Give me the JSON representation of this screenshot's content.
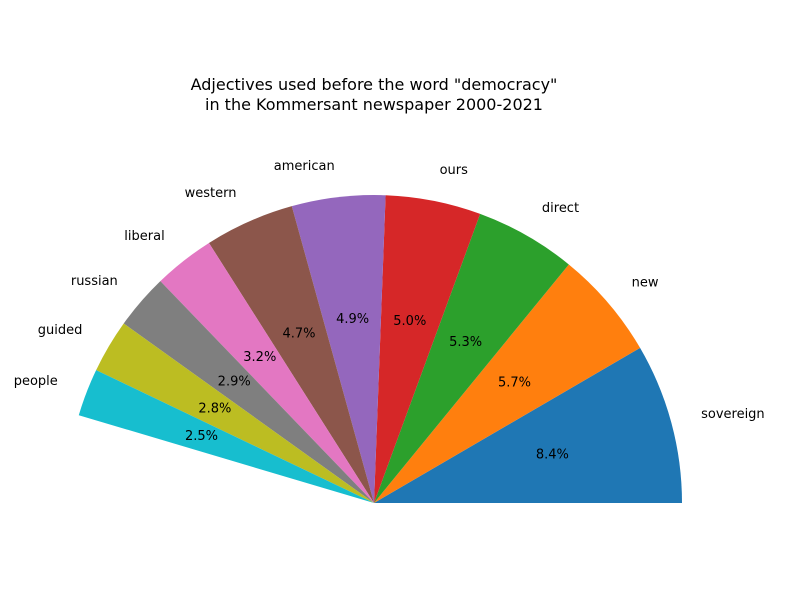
{
  "chart_data": {
    "type": "pie",
    "title_lines": [
      "Adjectives used before the word \"democracy\"",
      "in the Kommersant newspaper 2000-2021"
    ],
    "value_format": "percent, 1 decimal",
    "slices": [
      {
        "label": "sovereign",
        "value": 8.4,
        "color": "#1f77b4"
      },
      {
        "label": "new",
        "value": 5.7,
        "color": "#ff7f0e"
      },
      {
        "label": "direct",
        "value": 5.3,
        "color": "#2ca02c"
      },
      {
        "label": "ours",
        "value": 5.0,
        "color": "#d62728"
      },
      {
        "label": "american",
        "value": 4.9,
        "color": "#9467bd"
      },
      {
        "label": "western",
        "value": 4.7,
        "color": "#8c564b"
      },
      {
        "label": "liberal",
        "value": 3.2,
        "color": "#e377c2"
      },
      {
        "label": "russian",
        "value": 2.9,
        "color": "#7f7f7f"
      },
      {
        "label": "guided",
        "value": 2.8,
        "color": "#bcbd22"
      },
      {
        "label": "people",
        "value": 2.5,
        "color": "#17becf"
      }
    ]
  }
}
